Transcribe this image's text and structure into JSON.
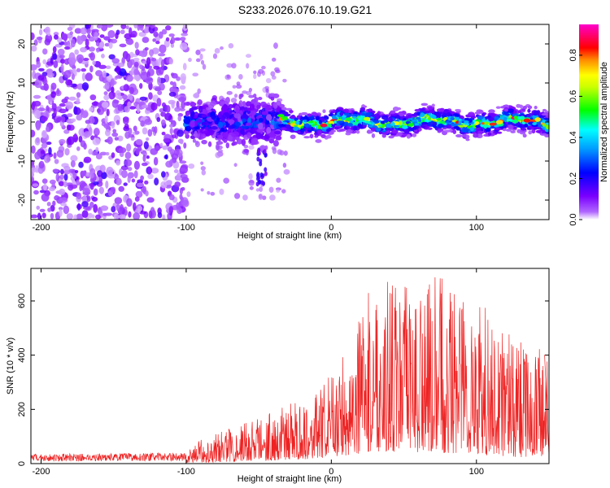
{
  "title": "S233.2026.076.10.19.G21",
  "chart_data": [
    {
      "type": "heatmap",
      "name": "spectrogram",
      "xlabel": "Height of straight line (km)",
      "ylabel": "Frequency (Hz)",
      "xlim": [
        -207,
        150
      ],
      "ylim": [
        -25,
        25
      ],
      "xticks": [
        -200,
        -100,
        0,
        100
      ],
      "xtick_labels": [
        "-200",
        "-100",
        "0",
        "100"
      ],
      "yticks": [
        -20,
        -10,
        0,
        10,
        20
      ],
      "ytick_labels": [
        "-20",
        "-10",
        "0",
        "10",
        "20"
      ],
      "colorbar": {
        "label": "Normalized spectral amplitude",
        "range": [
          0,
          0.95
        ],
        "ticks": [
          0.0,
          0.2,
          0.4,
          0.6,
          0.8
        ],
        "tick_labels": [
          "0.0",
          "0.2",
          "0.4",
          "0.6",
          "0.8"
        ],
        "colormap": [
          "#ffffff",
          "#8800ff",
          "#0000ff",
          "#00ffff",
          "#00ff00",
          "#ffff00",
          "#ff0000",
          "#ff00ff"
        ]
      },
      "regions": [
        {
          "x_range": [
            -207,
            -100
          ],
          "description_amplitude": 0.12,
          "freq_spread": 25
        },
        {
          "x_range": [
            -100,
            -35
          ],
          "center_freq": 0,
          "freq_spread": 6,
          "amplitude": 0.25
        },
        {
          "x_range": [
            -35,
            150
          ],
          "center_freq": 0,
          "freq_spread": 3,
          "amplitude": 0.8
        }
      ]
    },
    {
      "type": "line",
      "name": "snr",
      "xlabel": "Height of straight line (km)",
      "ylabel": "SNR (10 * v/v)",
      "xlim": [
        -207,
        150
      ],
      "ylim": [
        0,
        720
      ],
      "xticks": [
        -200,
        -100,
        0,
        100
      ],
      "xtick_labels": [
        "-200",
        "-100",
        "0",
        "100"
      ],
      "yticks": [
        0,
        200,
        400,
        600
      ],
      "ytick_labels": [
        "0",
        "200",
        "400",
        "600"
      ],
      "color": "#ee2222",
      "envelope": [
        {
          "x": -207,
          "baseline": 8,
          "peak": 35
        },
        {
          "x": -100,
          "baseline": 10,
          "peak": 40
        },
        {
          "x": -90,
          "baseline": 15,
          "peak": 90
        },
        {
          "x": -50,
          "baseline": 30,
          "peak": 180
        },
        {
          "x": -10,
          "baseline": 60,
          "peak": 260
        },
        {
          "x": 10,
          "baseline": 100,
          "peak": 420
        },
        {
          "x": 30,
          "baseline": 150,
          "peak": 690
        },
        {
          "x": 60,
          "baseline": 140,
          "peak": 650
        },
        {
          "x": 80,
          "baseline": 130,
          "peak": 720
        },
        {
          "x": 110,
          "baseline": 100,
          "peak": 560
        },
        {
          "x": 130,
          "baseline": 80,
          "peak": 450
        },
        {
          "x": 150,
          "baseline": 80,
          "peak": 410
        }
      ]
    }
  ]
}
